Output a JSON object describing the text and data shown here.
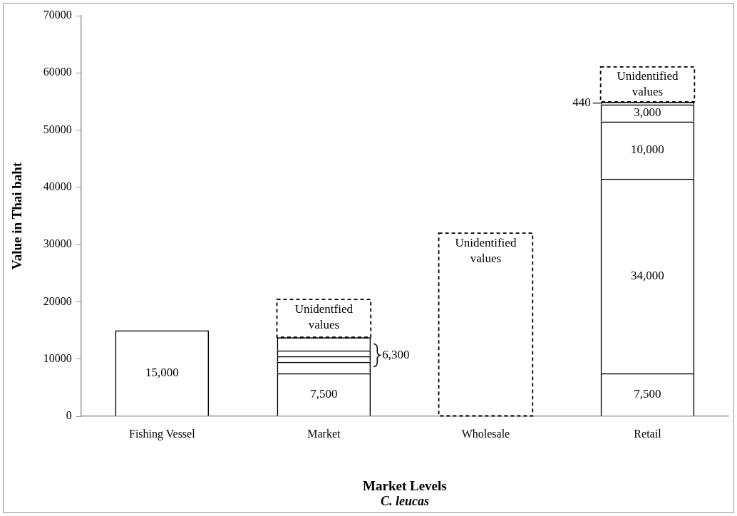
{
  "chart_data": {
    "type": "bar",
    "stacked": true,
    "xlabel": "Market Levels",
    "ylabel": "Value in Thai baht",
    "categories": [
      "Fishing Vessel",
      "Market",
      "Wholesale",
      "Retail"
    ],
    "ylim": [
      0,
      70000
    ],
    "yticks": [
      0,
      10000,
      20000,
      30000,
      40000,
      50000,
      60000,
      70000
    ],
    "grid": false,
    "legend": false,
    "series": [
      {
        "color": "#ffffff",
        "values": [
          15000,
          7500,
          null,
          7500
        ],
        "value_labels": [
          "15,000",
          "7,500",
          null,
          "7,500"
        ]
      },
      {
        "color": "#ffffff",
        "values": [
          null,
          2000,
          null,
          34000
        ],
        "value_labels": [
          null,
          null,
          null,
          "34,000"
        ]
      },
      {
        "color": "#ffffff",
        "values": [
          null,
          1000,
          null,
          10000
        ],
        "value_labels": [
          null,
          null,
          null,
          "10,000"
        ]
      },
      {
        "color": "#ffffff",
        "values": [
          null,
          1000,
          null,
          3000
        ],
        "value_labels": [
          null,
          null,
          null,
          "3,000"
        ]
      },
      {
        "color": "#ffffff",
        "values": [
          null,
          2300,
          null,
          440
        ],
        "value_labels": [
          null,
          null,
          null,
          "440"
        ]
      },
      {
        "color": "#ffffff",
        "line_style": "dashed",
        "values": [
          null,
          6600,
          32000,
          6100
        ],
        "value_labels": [
          null,
          "Unidentfied values",
          "Unidentified values",
          "Unidentified values"
        ]
      }
    ],
    "annotations": [
      "6,300",
      "C. leucas"
    ]
  }
}
